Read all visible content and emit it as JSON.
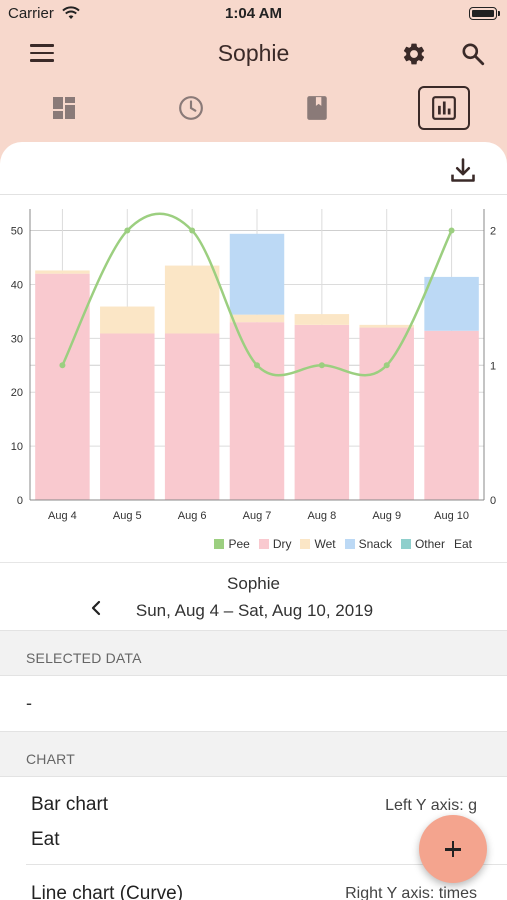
{
  "status_bar": {
    "carrier": "Carrier",
    "time": "1:04 AM"
  },
  "header": {
    "title": "Sophie"
  },
  "icons": {
    "menu": "hamburger-menu-icon",
    "settings": "gear-icon",
    "search": "search-icon",
    "tabs": [
      "dashboard-icon",
      "clock-icon",
      "book-icon",
      "bar-chart-icon"
    ],
    "download": "download-icon",
    "fab": "plus-icon",
    "back": "chevron-left-icon"
  },
  "tabs": {
    "active_index": 3
  },
  "chart_data": {
    "type": "bar",
    "categories": [
      "Aug 4",
      "Aug 5",
      "Aug 6",
      "Aug 7",
      "Aug 8",
      "Aug 9",
      "Aug 10"
    ],
    "stacked": true,
    "series": [
      {
        "name": "Dry",
        "color": "#f9c9cf",
        "values": [
          42,
          30.9,
          30.9,
          33,
          32.5,
          32,
          31.4
        ]
      },
      {
        "name": "Wet",
        "color": "#fbe6c6",
        "values": [
          0.6,
          5,
          12.6,
          1.4,
          2,
          0.5,
          0
        ]
      },
      {
        "name": "Snack",
        "color": "#bcd9f5",
        "values": [
          0,
          0,
          0,
          15,
          0,
          0,
          10
        ]
      },
      {
        "name": "Other",
        "color": "#8fcfcc",
        "values": [
          0,
          0,
          0,
          0,
          0,
          0,
          0
        ]
      }
    ],
    "line_series": {
      "name": "Pee",
      "color": "#9ccf80",
      "axis": "right",
      "values": [
        1,
        2,
        2,
        1,
        1,
        1,
        2
      ]
    },
    "legend": [
      "Pee",
      "Dry",
      "Wet",
      "Snack",
      "Other",
      "Eat"
    ],
    "left_axis": {
      "ylim": [
        0,
        50
      ],
      "ticks": [
        "0",
        "10",
        "20",
        "30",
        "40",
        "50"
      ]
    },
    "right_axis": {
      "ylim": [
        0,
        2
      ],
      "ticks": [
        "0",
        "1",
        "2"
      ]
    },
    "grid": true,
    "legend_position": "bottom-right"
  },
  "range": {
    "name": "Sophie",
    "dates": "Sun, Aug 4 – Sat, Aug 10, 2019"
  },
  "selected_data": {
    "header": "SELECTED DATA",
    "value": "-"
  },
  "chart_settings": {
    "header": "CHART",
    "bar_label": "Bar chart",
    "bar_value": "Eat",
    "bar_axis": "Left Y axis: g",
    "line_label": "Line chart (Curve)",
    "line_axis": "Right Y axis: times"
  }
}
